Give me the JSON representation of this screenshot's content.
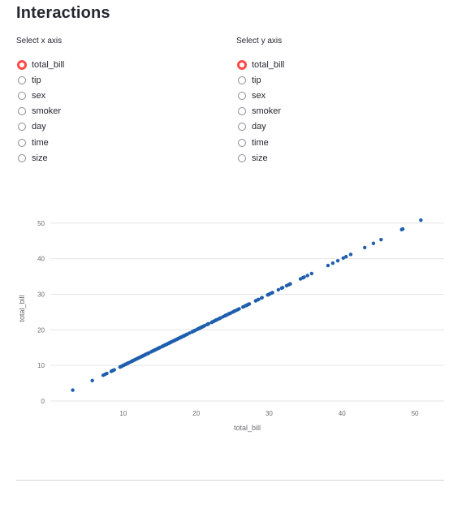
{
  "page": {
    "title": "Interactions"
  },
  "x_axis_select": {
    "label": "Select x axis",
    "selected": "total_bill",
    "options": [
      "total_bill",
      "tip",
      "sex",
      "smoker",
      "day",
      "time",
      "size"
    ]
  },
  "y_axis_select": {
    "label": "Select y axis",
    "selected": "total_bill",
    "options": [
      "total_bill",
      "tip",
      "sex",
      "smoker",
      "day",
      "time",
      "size"
    ]
  },
  "colors": {
    "accent": "#ff4b4b",
    "point": "#1f5fad",
    "grid": "#e6e6e6",
    "axis_text": "#6b6b73"
  },
  "chart_data": {
    "type": "scatter",
    "xlabel": "total_bill",
    "ylabel": "total_bill",
    "xlim": [
      0,
      54
    ],
    "ylim": [
      0,
      52
    ],
    "xticks": [
      10,
      20,
      30,
      40,
      50
    ],
    "yticks": [
      0,
      10,
      20,
      30,
      40,
      50
    ],
    "grid": "horizontal",
    "series": [
      {
        "x": [
          3.07,
          5.75,
          7.25,
          7.51,
          7.74,
          8.35,
          8.51,
          8.52,
          8.58,
          8.77,
          9.55,
          9.6,
          9.68,
          9.78,
          9.94,
          10.07,
          10.09,
          10.27,
          10.29,
          10.33,
          10.34,
          10.51,
          10.59,
          10.63,
          10.65,
          10.77,
          11.02,
          11.17,
          11.24,
          11.35,
          11.38,
          11.59,
          11.61,
          11.69,
          11.87,
          12.02,
          12.03,
          12.16,
          12.26,
          12.43,
          12.46,
          12.54,
          12.6,
          12.66,
          12.69,
          12.74,
          12.76,
          12.9,
          13,
          13.03,
          13.13,
          13.27,
          13.28,
          13.37,
          13.39,
          13.42,
          13.51,
          13.81,
          13.94,
          14.07,
          14.15,
          14.26,
          14.31,
          14.48,
          14.52,
          14.73,
          14.78,
          14.83,
          15.01,
          15.04,
          15.06,
          15.36,
          15.42,
          15.48,
          15.53,
          15.69,
          15.77,
          15.81,
          15.95,
          15.98,
          16.0,
          16.04,
          16.21,
          16.27,
          16.29,
          16.31,
          16.43,
          16.45,
          16.47,
          16.58,
          16.66,
          16.82,
          16.93,
          16.97,
          16.99,
          17.07,
          17.26,
          17.29,
          17.46,
          17.47,
          17.51,
          17.59,
          17.78,
          17.81,
          17.82,
          17.89,
          17.92,
          18.04,
          18.15,
          18.24,
          18.26,
          18.28,
          18.29,
          18.35,
          18.43,
          18.64,
          18.69,
          18.71,
          18.78,
          19.08,
          19.44,
          19.49,
          19.65,
          19.77,
          19.81,
          19.82,
          20.08,
          20.23,
          20.27,
          20.29,
          20.45,
          20.49,
          20.53,
          20.65,
          20.69,
          20.76,
          20.9,
          20.92,
          21.01,
          21.16,
          21.5,
          21.58,
          21.7,
          22.12,
          22.23,
          22.42,
          22.49,
          22.67,
          22.75,
          22.76,
          22.82,
          23.1,
          23.17,
          23.33,
          23.68,
          23.95,
          24.01,
          24.06,
          24.08,
          24.27,
          24.52,
          24.55,
          24.59,
          24.71,
          25.0,
          25.21,
          25.28,
          25.29,
          25.56,
          25.71,
          25.89,
          26.41,
          26.59,
          26.86,
          26.88,
          27.05,
          27.18,
          27.2,
          27.28,
          28.15,
          28.17,
          28.44,
          28.55,
          28.97,
          29.03,
          29.8,
          29.85,
          29.93,
          30.06,
          30.14,
          30.4,
          30.46,
          31.27,
          31.71,
          31.85,
          32.4,
          32.68,
          32.83,
          32.9,
          34.3,
          34.63,
          34.65,
          34.81,
          35.26,
          35.83,
          38.07,
          38.73,
          39.42,
          40.17,
          40.55,
          41.19,
          43.11,
          44.3,
          45.35,
          48.17,
          48.27,
          48.33,
          50.81
        ],
        "y": [
          3.07,
          5.75,
          7.25,
          7.51,
          7.74,
          8.35,
          8.51,
          8.52,
          8.58,
          8.77,
          9.55,
          9.6,
          9.68,
          9.78,
          9.94,
          10.07,
          10.09,
          10.27,
          10.29,
          10.33,
          10.34,
          10.51,
          10.59,
          10.63,
          10.65,
          10.77,
          11.02,
          11.17,
          11.24,
          11.35,
          11.38,
          11.59,
          11.61,
          11.69,
          11.87,
          12.02,
          12.03,
          12.16,
          12.26,
          12.43,
          12.46,
          12.54,
          12.6,
          12.66,
          12.69,
          12.74,
          12.76,
          12.9,
          13,
          13.03,
          13.13,
          13.27,
          13.28,
          13.37,
          13.39,
          13.42,
          13.51,
          13.81,
          13.94,
          14.07,
          14.15,
          14.26,
          14.31,
          14.48,
          14.52,
          14.73,
          14.78,
          14.83,
          15.01,
          15.04,
          15.06,
          15.36,
          15.42,
          15.48,
          15.53,
          15.69,
          15.77,
          15.81,
          15.95,
          15.98,
          16.0,
          16.04,
          16.21,
          16.27,
          16.29,
          16.31,
          16.43,
          16.45,
          16.47,
          16.58,
          16.66,
          16.82,
          16.93,
          16.97,
          16.99,
          17.07,
          17.26,
          17.29,
          17.46,
          17.47,
          17.51,
          17.59,
          17.78,
          17.81,
          17.82,
          17.89,
          17.92,
          18.04,
          18.15,
          18.24,
          18.26,
          18.28,
          18.29,
          18.35,
          18.43,
          18.64,
          18.69,
          18.71,
          18.78,
          19.08,
          19.44,
          19.49,
          19.65,
          19.77,
          19.81,
          19.82,
          20.08,
          20.23,
          20.27,
          20.29,
          20.45,
          20.49,
          20.53,
          20.65,
          20.69,
          20.76,
          20.9,
          20.92,
          21.01,
          21.16,
          21.5,
          21.58,
          21.7,
          22.12,
          22.23,
          22.42,
          22.49,
          22.67,
          22.75,
          22.76,
          22.82,
          23.1,
          23.17,
          23.33,
          23.68,
          23.95,
          24.01,
          24.06,
          24.08,
          24.27,
          24.52,
          24.55,
          24.59,
          24.71,
          25.0,
          25.21,
          25.28,
          25.29,
          25.56,
          25.71,
          25.89,
          26.41,
          26.59,
          26.86,
          26.88,
          27.05,
          27.18,
          27.2,
          27.28,
          28.15,
          28.17,
          28.44,
          28.55,
          28.97,
          29.03,
          29.8,
          29.85,
          29.93,
          30.06,
          30.14,
          30.4,
          30.46,
          31.27,
          31.71,
          31.85,
          32.4,
          32.68,
          32.83,
          32.9,
          34.3,
          34.63,
          34.65,
          34.81,
          35.26,
          35.83,
          38.07,
          38.73,
          39.42,
          40.17,
          40.55,
          41.19,
          43.11,
          44.3,
          45.35,
          48.17,
          48.27,
          48.33,
          50.81
        ]
      }
    ]
  }
}
